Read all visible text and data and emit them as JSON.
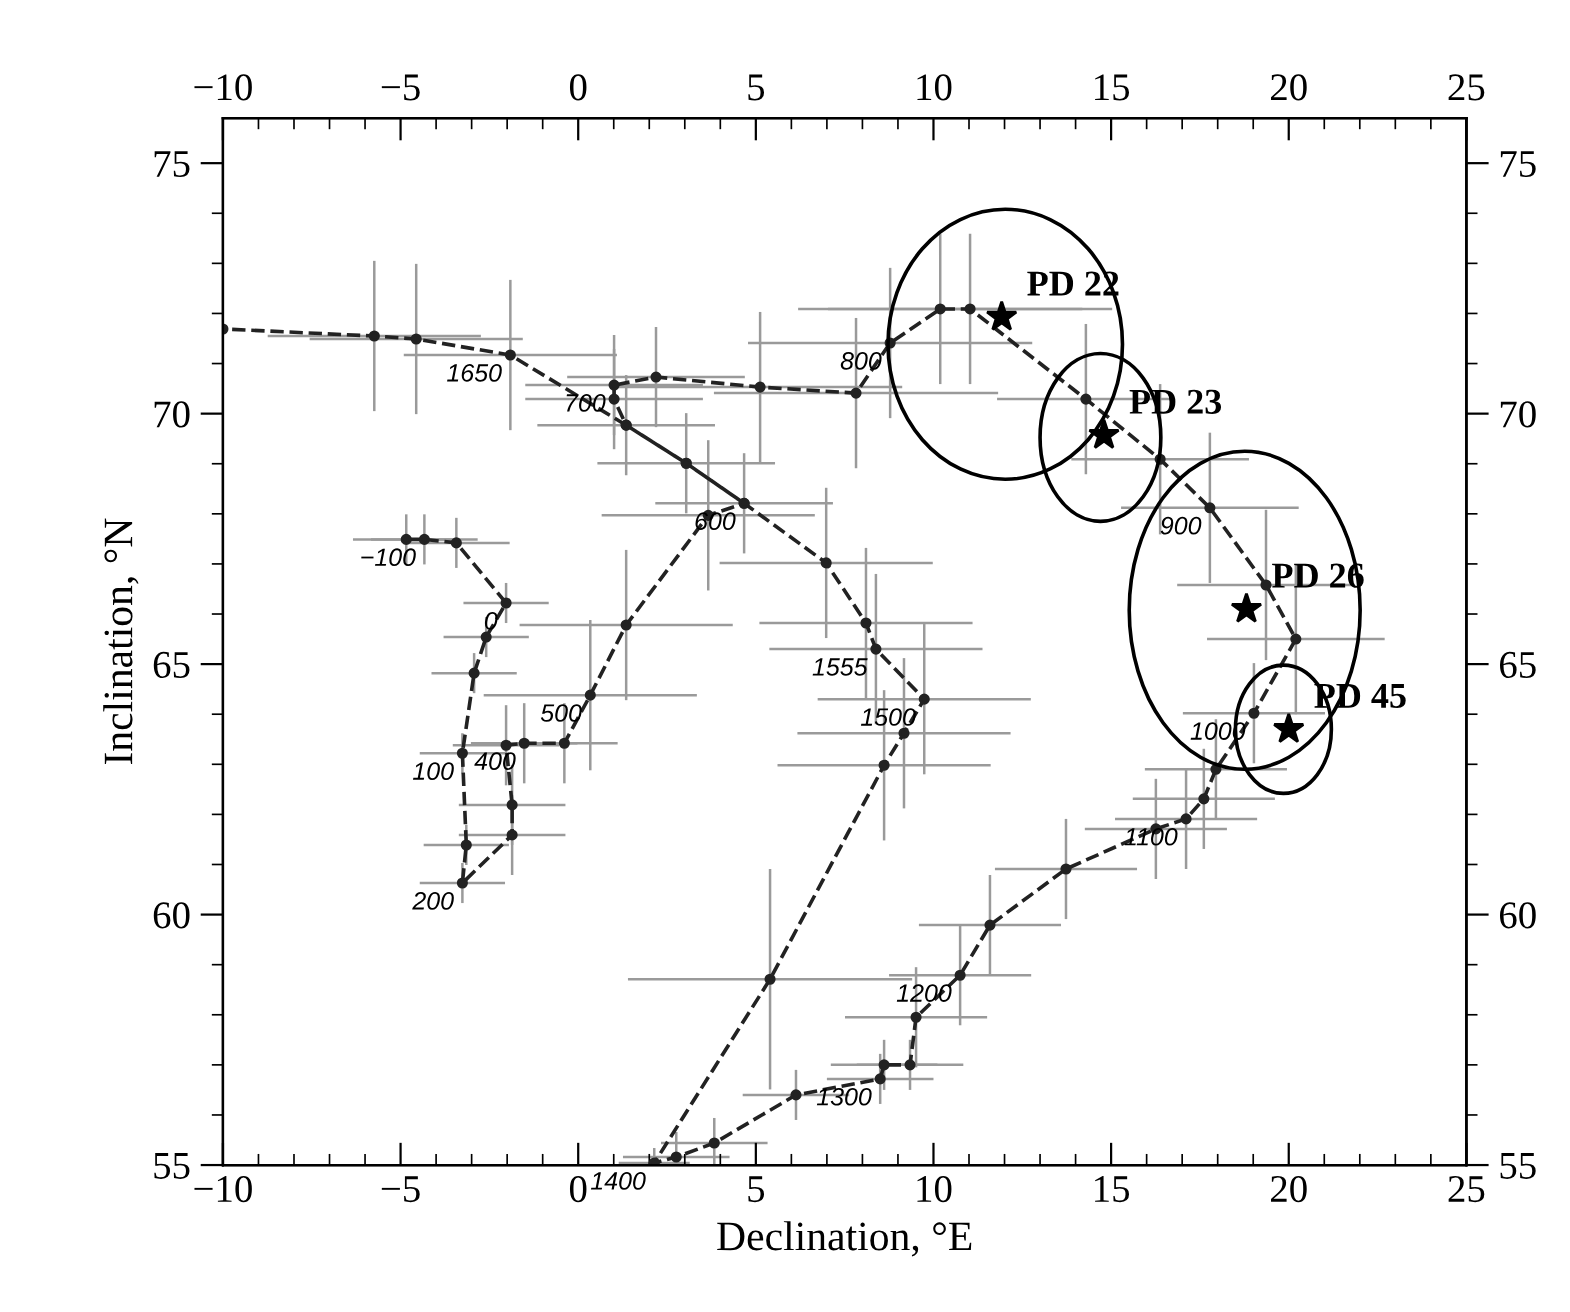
{
  "chart_data": {
    "type": "line",
    "xlabel": "Declination, °E",
    "ylabel": "Inclination, °N",
    "xlim": [
      -10,
      25
    ],
    "xticks": [
      {
        "value": -10,
        "label": "−10"
      },
      {
        "value": -5,
        "label": "−5"
      },
      0,
      5,
      10,
      15,
      20,
      25
    ],
    "x2lim": [
      -10,
      25
    ],
    "x2ticks": [
      {
        "value": -10,
        "label": "−10"
      },
      {
        "value": -5,
        "label": "−5"
      },
      0,
      5,
      10,
      15,
      20,
      25
    ],
    "ylim": [
      55,
      75.9
    ],
    "yticks": [
      55,
      60,
      65,
      70,
      75
    ],
    "y2lim": [
      55,
      75.9
    ],
    "y2ticks": [
      55,
      60,
      65,
      70,
      75
    ],
    "grid": false,
    "legend": false,
    "series": [
      {
        "color": "#222222",
        "marker": "circle",
        "line_style": "dashed",
        "x": [
          -4.84,
          -4.33,
          -3.43,
          -2.03,
          -2.59,
          -2.93,
          -3.26,
          -3.15,
          -3.26,
          -1.86,
          -1.86,
          -2.03,
          -1.52,
          -0.39,
          0.34,
          1.35,
          3.66,
          4.67,
          3.04,
          1.35,
          1.01,
          1.01,
          2.19,
          5.12,
          7.82,
          8.78,
          10.19,
          11.03,
          14.29,
          16.38,
          17.78,
          19.36,
          20.2,
          19.02,
          17.95,
          17.61,
          17.11,
          16.26,
          13.73,
          11.59,
          10.75,
          9.51,
          9.34,
          8.61,
          8.5,
          6.13,
          3.83,
          2.76,
          2.14,
          5.4,
          8.61,
          9.17,
          9.74,
          8.38,
          8.1,
          6.98,
          4.67,
          3.04,
          1.35,
          -1.91,
          -4.56,
          -5.74,
          -10
        ],
        "values": [
          67.49,
          67.49,
          67.42,
          66.22,
          65.54,
          64.82,
          63.22,
          61.39,
          60.63,
          61.59,
          62.19,
          63.38,
          63.42,
          63.42,
          64.38,
          65.78,
          67.97,
          68.21,
          69.01,
          69.77,
          70.29,
          70.57,
          70.73,
          70.53,
          70.41,
          71.41,
          72.09,
          72.09,
          70.29,
          69.09,
          68.12,
          66.58,
          65.5,
          64.02,
          62.9,
          62.31,
          61.91,
          61.71,
          60.91,
          59.79,
          58.79,
          57.95,
          57.0,
          57.0,
          56.72,
          56.4,
          55.44,
          55.16,
          55.04,
          58.71,
          62.98,
          63.62,
          64.3,
          65.3,
          65.82,
          67.02,
          68.21,
          69.01,
          69.77,
          71.17,
          71.49,
          71.55,
          71.69
        ],
        "xerrors": [
          1.5,
          1.5,
          1.5,
          1.2,
          1.2,
          1.2,
          1.2,
          1.2,
          1.2,
          1.5,
          1.5,
          1.5,
          1.5,
          1.5,
          3,
          3,
          3,
          2.5,
          2.5,
          2.5,
          2.5,
          2.5,
          2.5,
          4,
          4,
          4,
          4,
          4,
          2.5,
          2.5,
          2.5,
          2.5,
          2.5,
          2,
          2,
          2,
          2,
          2,
          2,
          2,
          2,
          2,
          1.5,
          1.5,
          1.5,
          1.5,
          1.5,
          1.5,
          1,
          4,
          3,
          3,
          3,
          3,
          3,
          3,
          null,
          null,
          null,
          3,
          3,
          3,
          null
        ],
        "errors": [
          0.5,
          0.5,
          0.5,
          0.4,
          0.4,
          0.4,
          0.4,
          0.4,
          0.4,
          0.8,
          0.8,
          0.8,
          0.8,
          0.8,
          1.5,
          1.5,
          1.5,
          1,
          1,
          1,
          1,
          1,
          1,
          1.5,
          1.5,
          1.5,
          1.5,
          1.5,
          1.5,
          1.5,
          1.5,
          1.5,
          1.5,
          1,
          1,
          1,
          1,
          1,
          1,
          1,
          1,
          1,
          0.5,
          0.5,
          0.5,
          0.5,
          0.5,
          0.5,
          0.3,
          2.2,
          1.5,
          1.5,
          1.5,
          1.5,
          1.5,
          1.5,
          null,
          null,
          null,
          1.5,
          1.5,
          1.5,
          null
        ]
      },
      {
        "type": "scatter",
        "name": "PD 22",
        "color": "#000000",
        "marker": "star",
        "x": [
          11.92
        ],
        "values": [
          71.93
        ]
      },
      {
        "type": "scatter",
        "name": "PD 23",
        "color": "#000000",
        "marker": "star",
        "x": [
          14.8
        ],
        "values": [
          69.57
        ]
      },
      {
        "type": "scatter",
        "name": "PD 26",
        "color": "#000000",
        "marker": "star",
        "x": [
          18.81
        ],
        "values": [
          66.1
        ]
      },
      {
        "type": "scatter",
        "name": "PD 45",
        "color": "#000000",
        "marker": "star",
        "x": [
          20.0
        ],
        "values": [
          63.7
        ]
      }
    ],
    "annotations": [
      {
        "text": "−100",
        "x": -4.33,
        "y": 67.49
      },
      {
        "text": "0",
        "x": -2.03,
        "y": 66.22
      },
      {
        "text": "100",
        "x": -3.26,
        "y": 63.22
      },
      {
        "text": "200",
        "x": -3.26,
        "y": 60.63
      },
      {
        "text": "400",
        "x": -1.52,
        "y": 63.42
      },
      {
        "text": "500",
        "x": 0.34,
        "y": 64.38
      },
      {
        "text": "600",
        "x": 4.67,
        "y": 68.21
      },
      {
        "text": "700",
        "x": 1.01,
        "y": 70.57
      },
      {
        "text": "800",
        "x": 8.78,
        "y": 71.41
      },
      {
        "text": "900",
        "x": 17.78,
        "y": 68.12
      },
      {
        "text": "1000",
        "x": 19.02,
        "y": 64.02
      },
      {
        "text": "1100",
        "x": 17.11,
        "y": 61.91
      },
      {
        "text": "1200",
        "x": 10.75,
        "y": 58.79
      },
      {
        "text": "1300",
        "x": 8.5,
        "y": 56.72
      },
      {
        "text": "1400",
        "x": 2.14,
        "y": 55.04
      },
      {
        "text": "1500",
        "x": 9.74,
        "y": 64.3
      },
      {
        "text": "1555",
        "x": 8.38,
        "y": 65.3
      },
      {
        "text": "1650",
        "x": -1.91,
        "y": 71.17
      }
    ]
  }
}
